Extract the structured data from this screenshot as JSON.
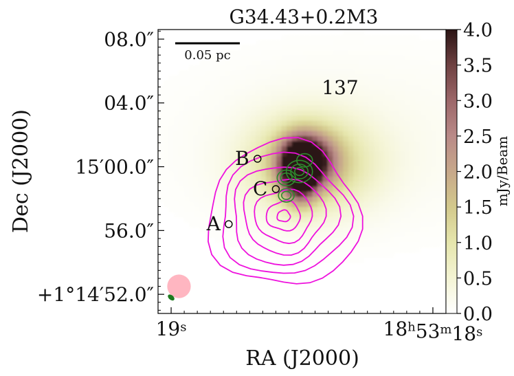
{
  "chart_data": {
    "type": "heatmap",
    "title": "G34.43+0.2M3",
    "xlabel": "RA (J2000)",
    "ylabel": "Dec (J2000)",
    "x_ticks": [
      {
        "label": "19",
        "sup": "s",
        "seconds": 19
      },
      {
        "label": "18",
        "sup": "h",
        "label2": "53",
        "sup2": "m",
        "label3": "18",
        "sup3": "s",
        "seconds": 18
      }
    ],
    "y_ticks": [
      {
        "label": "08.0″",
        "arcsec": 68
      },
      {
        "label": "04.0″",
        "arcsec": 64
      },
      {
        "label": "15′00.0″",
        "arcsec": 60
      },
      {
        "label": "56.0″",
        "arcsec": 56
      },
      {
        "label": "+1°14′52.0″",
        "arcsec": 52
      }
    ],
    "xlim": [
      19.05,
      17.95
    ],
    "ylim": [
      50.8,
      68.6
    ],
    "colorbar": {
      "label": "mJy/Beam",
      "min": 0.0,
      "max": 4.0,
      "ticks": [
        "0.0",
        "0.5",
        "1.0",
        "1.5",
        "2.0",
        "2.5",
        "3.0",
        "3.5",
        "4.0"
      ],
      "colors": [
        "#ffffff",
        "#f4f4d4",
        "#e6e6ad",
        "#d3c98c",
        "#c7a88a",
        "#b98a88",
        "#9c6769",
        "#6e4141",
        "#2b1414"
      ]
    },
    "scalebar": {
      "label": "0.05 pc"
    },
    "source_number": "137",
    "sources": [
      {
        "label": "A",
        "x": 18.78,
        "y": 56.4
      },
      {
        "label": "B",
        "x": 18.67,
        "y": 60.5
      },
      {
        "label": "C",
        "x": 18.6,
        "y": 58.6
      }
    ],
    "emission": [
      {
        "x": 18.51,
        "y": 59.6,
        "peak": 4.0,
        "sx": 0.045,
        "sy": 1.2
      },
      {
        "x": 18.48,
        "y": 60.4,
        "peak": 3.2,
        "sx": 0.07,
        "sy": 1.1
      },
      {
        "x": 18.47,
        "y": 60.2,
        "peak": 1.6,
        "sx": 0.16,
        "sy": 2.0
      },
      {
        "x": 18.3,
        "y": 61.5,
        "peak": 0.18,
        "sx": 0.5,
        "sy": 4.0
      }
    ],
    "magenta_contours": {
      "color": "#ee11dd",
      "center": {
        "x": 18.57,
        "y": 56.9
      },
      "levels": [
        {
          "rx": 0.29,
          "ry": 4.4
        },
        {
          "rx": 0.245,
          "ry": 3.7
        },
        {
          "rx": 0.2,
          "ry": 3.0
        },
        {
          "rx": 0.155,
          "ry": 2.3
        },
        {
          "rx": 0.11,
          "ry": 1.6
        },
        {
          "rx": 0.065,
          "ry": 0.9
        },
        {
          "rx": 0.025,
          "ry": 0.35
        }
      ]
    },
    "green_contours": {
      "color": "#2e8b2e",
      "blobs": [
        {
          "x": 18.56,
          "y": 59.3,
          "r": [
            0.035,
            0.022
          ]
        },
        {
          "x": 18.51,
          "y": 59.7,
          "r": [
            0.05,
            0.033,
            0.018
          ]
        },
        {
          "x": 18.56,
          "y": 58.2,
          "r": [
            0.03,
            0.018
          ]
        },
        {
          "x": 18.49,
          "y": 60.4,
          "r": [
            0.03
          ]
        }
      ]
    },
    "beams": {
      "large": {
        "color": "#ffb6c1",
        "x": 18.97,
        "y": 52.5,
        "r": 0.045
      },
      "small": {
        "color": "#1f7a1f",
        "x": 19.0,
        "y": 51.8,
        "r": 0.012
      }
    }
  }
}
